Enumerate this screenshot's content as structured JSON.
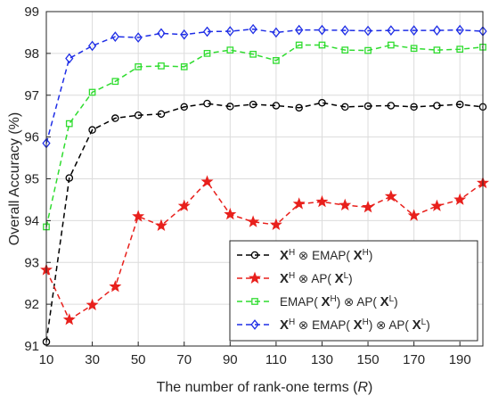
{
  "chart_data": {
    "type": "line",
    "xlabel": "The number of rank-one terms (",
    "xlabel_var": "R",
    "xlabel_close": ")",
    "ylabel": "Overall Accuracy (%)",
    "xlim": [
      10,
      200
    ],
    "ylim": [
      91,
      99
    ],
    "x_ticks": [
      10,
      30,
      50,
      70,
      90,
      110,
      130,
      150,
      170,
      190
    ],
    "y_ticks": [
      91,
      92,
      93,
      94,
      95,
      96,
      97,
      98,
      99
    ],
    "grid": true,
    "legend_position": "bottom-right",
    "x": [
      10,
      20,
      30,
      40,
      50,
      60,
      70,
      80,
      90,
      100,
      110,
      120,
      130,
      140,
      150,
      160,
      170,
      180,
      190,
      200
    ],
    "series": [
      {
        "legend": [
          {
            "t": "X",
            "b": true
          },
          {
            "t": "H",
            "sup": true
          },
          {
            "t": " ⊗ EMAP( "
          },
          {
            "t": "X",
            "b": true
          },
          {
            "t": "H",
            "sup": true
          },
          {
            "t": ")"
          }
        ],
        "color": "#000000",
        "marker": "circle",
        "values": [
          91.1,
          95.02,
          96.17,
          96.45,
          96.52,
          96.55,
          96.72,
          96.8,
          96.73,
          96.78,
          96.75,
          96.7,
          96.82,
          96.72,
          96.74,
          96.75,
          96.72,
          96.75,
          96.78,
          96.72
        ]
      },
      {
        "legend": [
          {
            "t": "X",
            "b": true
          },
          {
            "t": "H",
            "sup": true
          },
          {
            "t": " ⊗ AP( "
          },
          {
            "t": "X",
            "b": true
          },
          {
            "t": "L",
            "sup": true
          },
          {
            "t": ")"
          }
        ],
        "color": "#e8201c",
        "marker": "star",
        "values": [
          92.82,
          91.63,
          91.98,
          92.42,
          94.1,
          93.88,
          94.35,
          94.93,
          94.15,
          93.97,
          93.9,
          94.4,
          94.45,
          94.37,
          94.32,
          94.58,
          94.12,
          94.35,
          94.5,
          94.9
        ]
      },
      {
        "legend": [
          {
            "t": "EMAP( "
          },
          {
            "t": "X",
            "b": true
          },
          {
            "t": "H",
            "sup": true
          },
          {
            "t": ") ⊗ AP( "
          },
          {
            "t": "X",
            "b": true
          },
          {
            "t": "L",
            "sup": true
          },
          {
            "t": ")"
          }
        ],
        "color": "#2fdc2f",
        "marker": "square",
        "values": [
          93.85,
          96.32,
          97.07,
          97.33,
          97.68,
          97.7,
          97.68,
          98.0,
          98.08,
          97.98,
          97.83,
          98.2,
          98.2,
          98.08,
          98.07,
          98.2,
          98.12,
          98.08,
          98.1,
          98.15
        ]
      },
      {
        "legend": [
          {
            "t": "X",
            "b": true
          },
          {
            "t": "H",
            "sup": true
          },
          {
            "t": " ⊗ EMAP( "
          },
          {
            "t": "X",
            "b": true
          },
          {
            "t": "H",
            "sup": true
          },
          {
            "t": ") ⊗ AP( "
          },
          {
            "t": "X",
            "b": true
          },
          {
            "t": "L",
            "sup": true
          },
          {
            "t": ")"
          }
        ],
        "color": "#1f2ee6",
        "marker": "diamond",
        "values": [
          95.85,
          97.88,
          98.18,
          98.4,
          98.38,
          98.48,
          98.45,
          98.52,
          98.53,
          98.58,
          98.5,
          98.56,
          98.56,
          98.55,
          98.54,
          98.55,
          98.55,
          98.55,
          98.56,
          98.53
        ]
      }
    ]
  }
}
